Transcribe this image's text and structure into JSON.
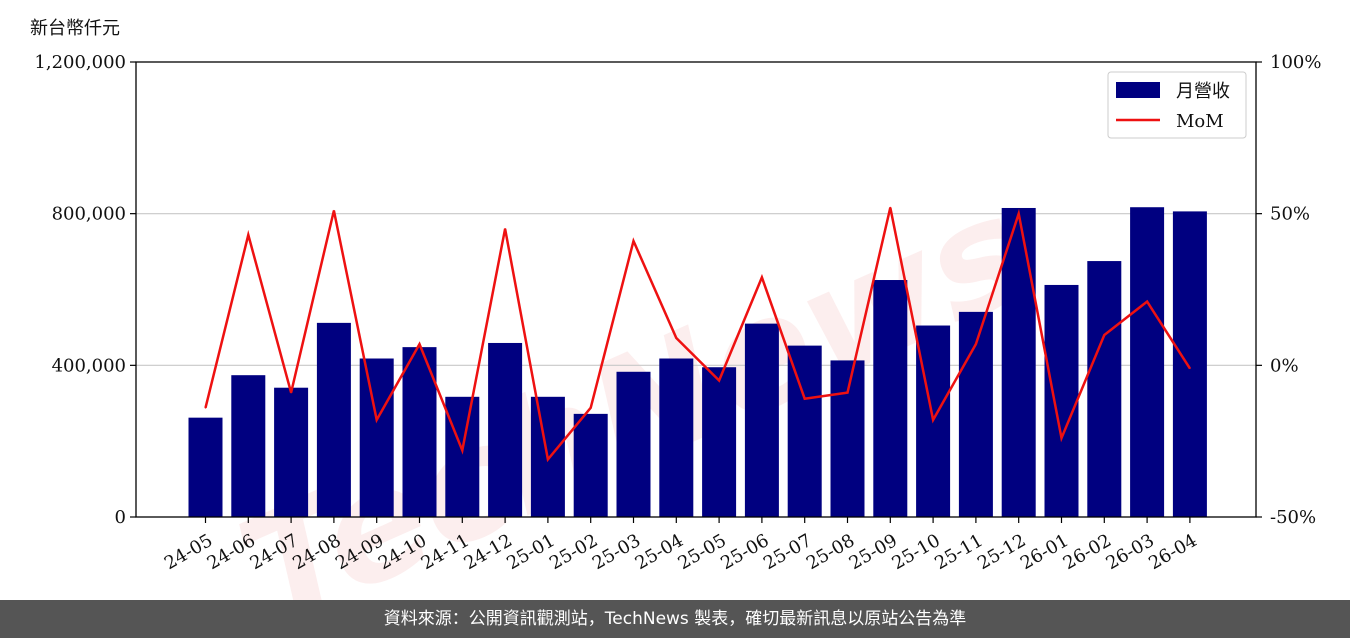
{
  "chart_data": {
    "type": "bar",
    "ylabel": "新台幣仟元",
    "categories": [
      "24-05",
      "24-06",
      "24-07",
      "24-08",
      "24-09",
      "24-10",
      "24-11",
      "24-12",
      "25-01",
      "25-02",
      "25-03",
      "25-04",
      "25-05",
      "25-06",
      "25-07",
      "25-08",
      "25-09",
      "25-10",
      "25-11",
      "25-12",
      "26-01",
      "26-02",
      "26-03",
      "26-04"
    ],
    "series": [
      {
        "name": "月營收",
        "type": "bar",
        "axis": "left",
        "color": "#000080",
        "values": [
          262000,
          374000,
          341000,
          512000,
          418000,
          448000,
          317000,
          459000,
          317000,
          272000,
          383000,
          418000,
          395000,
          510000,
          452000,
          413000,
          625000,
          505000,
          541000,
          815000,
          612000,
          675000,
          817000,
          806000
        ]
      },
      {
        "name": "MoM",
        "type": "line",
        "axis": "right",
        "color": "#ee1111",
        "values": [
          -14,
          43,
          -9,
          51,
          -18,
          7,
          -28,
          45,
          -31,
          -14,
          41,
          9,
          -5,
          29,
          -11,
          -9,
          52,
          -18,
          7,
          50,
          -24,
          10,
          21,
          -1
        ]
      }
    ],
    "ylim": [
      0,
      1200000
    ],
    "y_ticks": [
      "0",
      "400,000",
      "800,000",
      "1,200,000"
    ],
    "y2lim": [
      -50,
      100
    ],
    "y2_ticks": [
      "-50%",
      "0%",
      "50%",
      "100%"
    ],
    "grid": "horizontal",
    "legend": "top-right"
  },
  "watermark": "TechNews",
  "footer": "資料來源：公開資訊觀測站，TechNews 製表，確切最新訊息以原站公告為準"
}
